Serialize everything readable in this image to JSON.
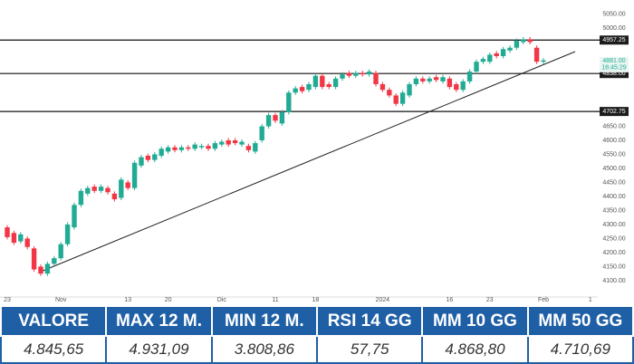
{
  "chart_data": {
    "type": "candlestick",
    "categories": [
      "23",
      null,
      null,
      null,
      null,
      null,
      null,
      null,
      "Nov",
      null,
      null,
      null,
      null,
      null,
      null,
      null,
      null,
      null,
      "13",
      null,
      null,
      null,
      null,
      null,
      "20",
      null,
      null,
      null,
      null,
      null,
      null,
      null,
      "Dic",
      null,
      null,
      null,
      null,
      null,
      null,
      null,
      "11",
      null,
      null,
      null,
      null,
      null,
      "18",
      null,
      null,
      null,
      null,
      null,
      null,
      null,
      null,
      null,
      "2024",
      null,
      null,
      null,
      null,
      null,
      null,
      null,
      null,
      null,
      "16",
      null,
      null,
      null,
      null,
      null,
      "23",
      null,
      null,
      null,
      null,
      null,
      null,
      null,
      "Feb",
      null,
      null,
      null,
      null,
      null,
      null,
      "1"
    ],
    "open": [
      4290,
      4270,
      4240,
      4250,
      4215,
      4150,
      4125,
      4160,
      4180,
      4230,
      4290,
      4370,
      4410,
      4435,
      4420,
      4430,
      4410,
      4395,
      4450,
      4430,
      4510,
      4545,
      4530,
      4545,
      4560,
      4575,
      4565,
      4575,
      4570,
      4575,
      4580,
      4570,
      4585,
      4600,
      4600,
      4585,
      4580,
      4560,
      4600,
      4650,
      4690,
      4660,
      4700,
      4770,
      4790,
      4780,
      4790,
      4830,
      4800,
      4790,
      4820,
      4840,
      4830,
      4840,
      4835,
      4840,
      4800,
      4780,
      4760,
      4730,
      4760,
      4800,
      4820,
      4810,
      4825,
      4810,
      4820,
      4800,
      4780,
      4810,
      4845,
      4880,
      4880,
      4910,
      4900,
      4920,
      4930,
      4950,
      4960,
      4930,
      4880,
      null,
      null,
      null,
      null,
      null,
      null,
      null
    ],
    "high": [
      4298,
      4278,
      4273,
      4258,
      4223,
      4158,
      4168,
      4188,
      4238,
      4308,
      4378,
      4428,
      4438,
      4443,
      4443,
      4438,
      4418,
      4468,
      4458,
      4528,
      4548,
      4553,
      4558,
      4578,
      4583,
      4583,
      4583,
      4583,
      4593,
      4588,
      4588,
      4598,
      4603,
      4608,
      4608,
      4603,
      4588,
      4598,
      4658,
      4698,
      4698,
      4708,
      4778,
      4793,
      4798,
      4808,
      4838,
      4838,
      4808,
      4828,
      4843,
      4848,
      4848,
      4848,
      4853,
      4848,
      4808,
      4788,
      4768,
      4778,
      4808,
      4828,
      4828,
      4828,
      4833,
      4833,
      4828,
      4808,
      4818,
      4853,
      4888,
      4898,
      4913,
      4918,
      4933,
      4938,
      4963,
      4968,
      4968,
      4938,
      4893,
      null,
      null,
      null,
      null,
      null,
      null,
      null
    ],
    "low": [
      4247,
      4227,
      4232,
      4212,
      4132,
      4117,
      4117,
      4152,
      4172,
      4222,
      4282,
      4362,
      4402,
      4412,
      4412,
      4407,
      4382,
      4387,
      4422,
      4422,
      4502,
      4522,
      4522,
      4537,
      4552,
      4557,
      4557,
      4562,
      4562,
      4567,
      4562,
      4562,
      4577,
      4577,
      4582,
      4577,
      4557,
      4552,
      4592,
      4642,
      4662,
      4652,
      4692,
      4762,
      4767,
      4772,
      4782,
      4782,
      4782,
      4782,
      4812,
      4822,
      4822,
      4827,
      4827,
      4792,
      4772,
      4752,
      4722,
      4722,
      4752,
      4792,
      4802,
      4802,
      4807,
      4802,
      4782,
      4772,
      4772,
      4802,
      4837,
      4872,
      4872,
      4892,
      4892,
      4912,
      4922,
      4942,
      4942,
      4872,
      4872,
      null,
      null,
      null,
      null,
      null,
      null,
      null
    ],
    "close": [
      4255,
      4235,
      4265,
      4220,
      4140,
      4125,
      4160,
      4180,
      4230,
      4300,
      4370,
      4420,
      4430,
      4420,
      4435,
      4415,
      4390,
      4460,
      4430,
      4520,
      4540,
      4530,
      4550,
      4570,
      4575,
      4565,
      4575,
      4570,
      4585,
      4580,
      4570,
      4590,
      4595,
      4585,
      4590,
      4595,
      4565,
      4590,
      4650,
      4690,
      4670,
      4700,
      4770,
      4785,
      4775,
      4800,
      4830,
      4790,
      4790,
      4820,
      4835,
      4830,
      4840,
      4835,
      4845,
      4800,
      4780,
      4760,
      4730,
      4770,
      4800,
      4820,
      4810,
      4820,
      4815,
      4825,
      4790,
      4780,
      4810,
      4845,
      4880,
      4890,
      4905,
      4900,
      4925,
      4930,
      4955,
      4960,
      4950,
      4880,
      4885,
      null,
      null,
      null,
      null,
      null,
      null,
      null
    ],
    "up_color": "#22ab94",
    "down_color": "#f23645",
    "ylim": [
      4045,
      5100
    ],
    "yticks": [
      {
        "value": 5050,
        "label": "5050.00"
      },
      {
        "value": 5000,
        "label": "5000.00"
      },
      {
        "value": 4650,
        "label": "4650.00"
      },
      {
        "value": 4600,
        "label": "4600.00"
      },
      {
        "value": 4550,
        "label": "4550.00"
      },
      {
        "value": 4500,
        "label": "4500.00"
      },
      {
        "value": 4450,
        "label": "4450.00"
      },
      {
        "value": 4400,
        "label": "4400.00"
      },
      {
        "value": 4350,
        "label": "4350.00"
      },
      {
        "value": 4300,
        "label": "4300.00"
      },
      {
        "value": 4250,
        "label": "4250.00"
      },
      {
        "value": 4200,
        "label": "4200.00"
      },
      {
        "value": 4150,
        "label": "4150.00"
      },
      {
        "value": 4100,
        "label": "4100.00"
      }
    ],
    "levels": [
      {
        "value": 4957.25,
        "label": "4957.25"
      },
      {
        "value": 4838,
        "label": "4838.00"
      },
      {
        "value": 4702.75,
        "label": "4702.75"
      }
    ],
    "last_price": {
      "value": 4881,
      "label": "4881.00"
    },
    "last_time": "16:45:29"
  },
  "table": {
    "header": [
      "VALORE",
      "MAX 12 M.",
      "MIN 12 M.",
      "RSI 14 GG",
      "MM 10 GG",
      "MM 50 GG"
    ],
    "row": [
      "4.845,65",
      "4.931,09",
      "3.808,86",
      "57,75",
      "4.868,80",
      "4.710,69"
    ]
  }
}
